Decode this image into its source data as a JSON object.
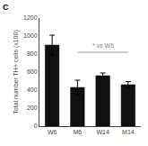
{
  "chart_data": {
    "type": "bar",
    "categories": [
      "W6",
      "M6",
      "W14",
      "M14"
    ],
    "values": [
      900,
      430,
      560,
      460
    ],
    "errors": [
      110,
      80,
      30,
      35
    ],
    "color": "#111111",
    "ylabel": "Total number TH+ cells (x100)",
    "ylim": [
      0,
      1200
    ],
    "yticks": [
      0,
      200,
      400,
      600,
      800,
      1000,
      1200
    ],
    "grid": false,
    "bracket": {
      "from": "M6",
      "to": "M14",
      "y": 820,
      "label": "* vs W6",
      "label_y": 840,
      "color": "gray"
    },
    "panel_label": "C"
  }
}
